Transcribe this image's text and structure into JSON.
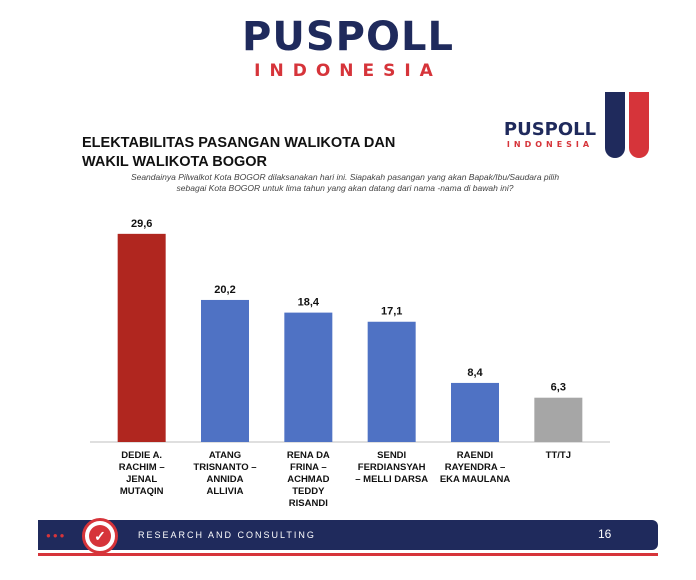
{
  "brand": {
    "logo_main": "PUSPOLL",
    "logo_sub": "INDONESIA",
    "colors": {
      "navy": "#1f2a5c",
      "red": "#d6343a"
    }
  },
  "slide": {
    "title": "ELEKTABILITAS PASANGAN WALIKOTA DAN WAKIL WALIKOTA BOGOR",
    "question": "Seandainya Pilwalkot Kota  BOGOR dilaksanakan hari ini. Siapakah  pasangan  yang akan Bapak/Ibu/Saudara pilih sebagai Kota BOGOR untuk lima tahun yang akan datang dari nama  -nama di bawah ini?"
  },
  "chart_data": {
    "type": "bar",
    "categories": [
      "DEDIE A. RACHIM – JENAL MUTAQIN",
      "ATANG TRISNANTO – ANNIDA ALLIVIA",
      "RENA DA FRINA – ACHMAD TEDDY RISANDI",
      "SENDI FERDIANSYAH – MELLI DARSA",
      "RAENDI RAYENDRA – EKA MAULANA",
      "TT/TJ"
    ],
    "category_lines": [
      [
        "DEDIE A.",
        "RACHIM –",
        "JENAL",
        "MUTAQIN"
      ],
      [
        "ATANG",
        "TRISNANTO –",
        "ANNIDA",
        "ALLIVIA"
      ],
      [
        "RENA DA",
        "FRINA –",
        "ACHMAD",
        "TEDDY",
        "RISANDI"
      ],
      [
        "SENDI",
        "FERDIANSYAH",
        "– MELLI DARSA"
      ],
      [
        "RAENDI",
        "RAYENDRA –",
        "EKA MAULANA"
      ],
      [
        "TT/TJ"
      ]
    ],
    "values": [
      29.6,
      20.2,
      18.4,
      17.1,
      8.4,
      6.3
    ],
    "value_labels": [
      "29,6",
      "20,2",
      "18,4",
      "17,1",
      "8,4",
      "6,3"
    ],
    "bar_colors": [
      "#b0261f",
      "#4f72c4",
      "#4f72c4",
      "#4f72c4",
      "#4f72c4",
      "#a6a6a6"
    ],
    "ylim": [
      0,
      31
    ],
    "grid": false,
    "legend": false
  },
  "footer": {
    "tagline": "RESEARCH AND CONSULTING",
    "page_number": "16"
  }
}
